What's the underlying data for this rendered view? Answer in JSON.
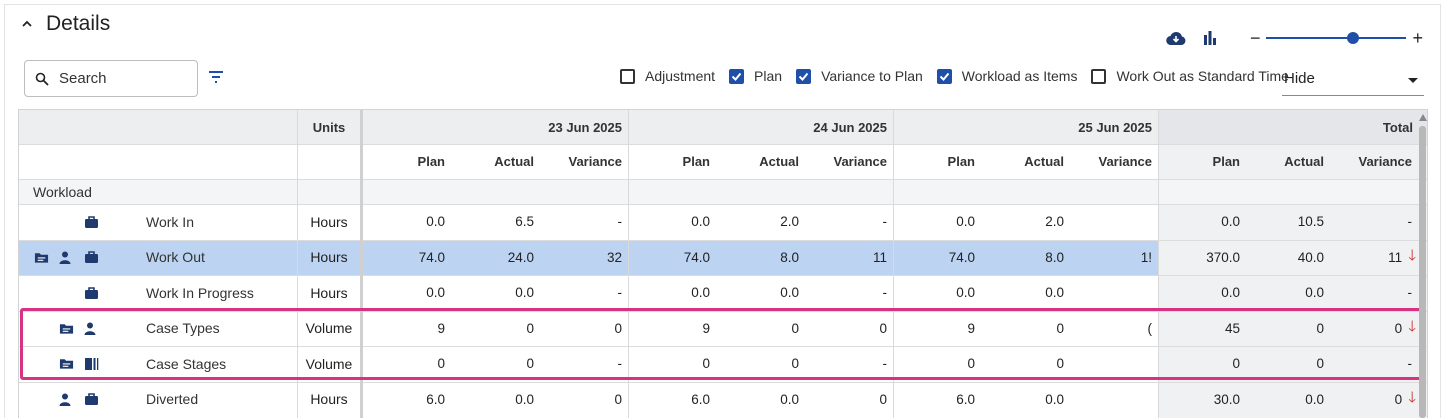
{
  "header": {
    "title": "Details"
  },
  "search": {
    "label": "Search"
  },
  "options": [
    {
      "label": "Adjustment",
      "checked": false
    },
    {
      "label": "Plan",
      "checked": true
    },
    {
      "label": "Variance to Plan",
      "checked": true
    },
    {
      "label": "Workload as Items",
      "checked": true
    },
    {
      "label": "Work Out as Standard Time",
      "checked": false
    }
  ],
  "select": {
    "value": "Hide"
  },
  "zoom": {
    "minus": "−",
    "plus": "+",
    "level": 0.62
  },
  "colors": {
    "accent": "#1f4fa8",
    "selected_row": "#bcd3f2",
    "total_bg": "#e4e6e9",
    "highlight": "#d63384",
    "down_arrow": "#d32f2f"
  },
  "grid": {
    "units_header": "Units",
    "dates": [
      "23 Jun 2025",
      "24 Jun 2025",
      "25 Jun 2025"
    ],
    "total_header": "Total",
    "sub_headers": [
      "Plan",
      "Actual",
      "Variance"
    ],
    "group": "Workload",
    "rows": [
      {
        "name": "Work In",
        "icons": [
          "briefcase-icon"
        ],
        "units": "Hours",
        "days": [
          [
            "0.0",
            "6.5",
            "-"
          ],
          [
            "0.0",
            "2.0",
            "-"
          ],
          [
            "0.0",
            "2.0",
            ""
          ]
        ],
        "total": [
          "0.0",
          "10.5",
          "-"
        ],
        "arrow": false,
        "selected": false
      },
      {
        "name": "Work Out",
        "icons": [
          "folder-icon",
          "person-icon",
          "briefcase-icon"
        ],
        "units": "Hours",
        "days": [
          [
            "74.0",
            "24.0",
            "32"
          ],
          [
            "74.0",
            "8.0",
            "11"
          ],
          [
            "74.0",
            "8.0",
            "1!"
          ]
        ],
        "total": [
          "370.0",
          "40.0",
          "11"
        ],
        "arrow": true,
        "selected": true
      },
      {
        "name": "Work In Progress",
        "icons": [
          "briefcase-icon"
        ],
        "units": "Hours",
        "days": [
          [
            "0.0",
            "0.0",
            "-"
          ],
          [
            "0.0",
            "0.0",
            "-"
          ],
          [
            "0.0",
            "0.0",
            ""
          ]
        ],
        "total": [
          "0.0",
          "0.0",
          "-"
        ],
        "arrow": false,
        "selected": false
      },
      {
        "name": "Case Types",
        "icons": [
          "folder-icon",
          "person-icon"
        ],
        "units": "Volume",
        "days": [
          [
            "9",
            "0",
            "0"
          ],
          [
            "9",
            "0",
            "0"
          ],
          [
            "9",
            "0",
            "("
          ]
        ],
        "total": [
          "45",
          "0",
          "0"
        ],
        "arrow": true,
        "selected": false
      },
      {
        "name": "Case Stages",
        "icons": [
          "folder-icon",
          "stages-icon"
        ],
        "units": "Volume",
        "days": [
          [
            "0",
            "0",
            "-"
          ],
          [
            "0",
            "0",
            "-"
          ],
          [
            "0",
            "0",
            ""
          ]
        ],
        "total": [
          "0",
          "0",
          "-"
        ],
        "arrow": false,
        "selected": false
      },
      {
        "name": "Diverted",
        "icons": [
          "person-icon",
          "briefcase-icon"
        ],
        "units": "Hours",
        "days": [
          [
            "6.0",
            "0.0",
            "0"
          ],
          [
            "6.0",
            "0.0",
            "0"
          ],
          [
            "6.0",
            "0.0",
            ""
          ]
        ],
        "total": [
          "30.0",
          "0.0",
          "0"
        ],
        "arrow": true,
        "selected": false
      }
    ],
    "arrow_glyph": "🡓"
  }
}
